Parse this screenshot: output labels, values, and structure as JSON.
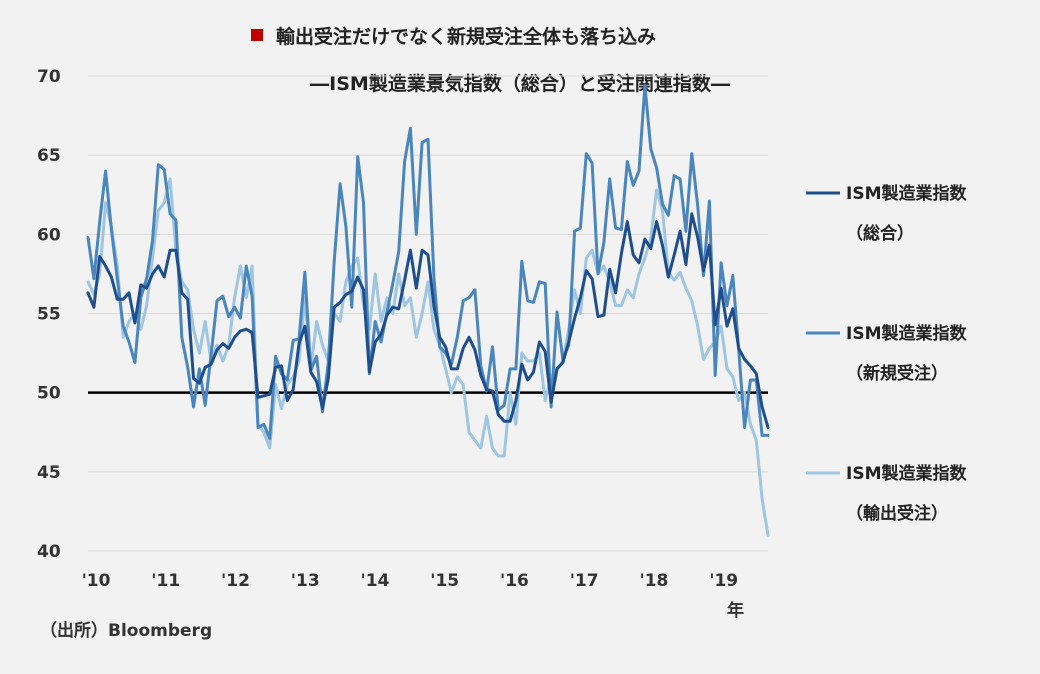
{
  "chart_data": {
    "type": "line",
    "title_marker_color": "#c00000",
    "title": "輸出受注だけでなく新規受注全体も落ち込み",
    "subtitle": "―ISM製造業景気指数（総合）と受注関連指数―",
    "xlabel": "年",
    "ylabel": "",
    "ylim": [
      40,
      70
    ],
    "yticks": [
      40,
      45,
      50,
      55,
      60,
      65,
      70
    ],
    "xlim": [
      2010.0,
      2019.75
    ],
    "xticks": [
      {
        "label": "'10",
        "value": 2010
      },
      {
        "label": "'11",
        "value": 2011
      },
      {
        "label": "'12",
        "value": 2012
      },
      {
        "label": "'13",
        "value": 2013
      },
      {
        "label": "'14",
        "value": 2014
      },
      {
        "label": "'15",
        "value": 2015
      },
      {
        "label": "'16",
        "value": 2016
      },
      {
        "label": "'17",
        "value": 2017
      },
      {
        "label": "'18",
        "value": 2018
      },
      {
        "label": "'19",
        "value": 2019
      }
    ],
    "reference_line": {
      "value": 50,
      "color": "#000000"
    },
    "grid": true,
    "legend_position": "right",
    "series": [
      {
        "name": "ISM製造業指数（総合）",
        "legend_lines": [
          "ISM製造業指数",
          "（総合）"
        ],
        "color": "#1f4e8c",
        "values": [
          56.3,
          55.4,
          58.6,
          58.0,
          57.3,
          55.9,
          55.9,
          56.3,
          54.4,
          56.8,
          56.6,
          57.5,
          58.0,
          57.3,
          59.0,
          59.0,
          56.3,
          55.9,
          50.9,
          50.6,
          51.6,
          51.8,
          52.7,
          53.1,
          52.8,
          53.5,
          53.9,
          54.0,
          53.8,
          49.7,
          49.8,
          49.9,
          51.6,
          51.7,
          49.5,
          50.2,
          53.1,
          54.2,
          51.3,
          50.7,
          49.0,
          50.9,
          55.4,
          55.7,
          56.2,
          56.4,
          57.3,
          56.5,
          51.3,
          53.2,
          53.7,
          54.9,
          55.4,
          55.3,
          57.1,
          59.0,
          56.6,
          59.0,
          58.7,
          55.5,
          53.5,
          52.9,
          51.5,
          51.5,
          52.8,
          53.5,
          52.7,
          51.1,
          50.2,
          50.1,
          48.6,
          48.2,
          48.2,
          49.5,
          51.8,
          50.8,
          51.3,
          53.2,
          52.6,
          49.4,
          51.5,
          51.9,
          53.2,
          54.7,
          56.0,
          57.7,
          57.2,
          54.8,
          54.9,
          57.8,
          56.3,
          58.8,
          60.8,
          58.7,
          58.2,
          59.7,
          59.1,
          60.8,
          59.3,
          57.3,
          58.7,
          60.2,
          58.1,
          61.3,
          59.8,
          57.7,
          59.3,
          54.3,
          56.6,
          54.2,
          55.3,
          52.8,
          52.1,
          51.7,
          51.2,
          49.1,
          47.8
        ]
      },
      {
        "name": "ISM製造業指数（新規受注）",
        "legend_lines": [
          "ISM製造業指数",
          "（新規受注）"
        ],
        "color": "#4a86bd",
        "values": [
          59.8,
          57.2,
          60.8,
          64.0,
          60.3,
          57.2,
          54.2,
          53.2,
          51.9,
          56.0,
          57.2,
          59.6,
          64.4,
          64.1,
          61.3,
          60.9,
          53.5,
          51.6,
          49.1,
          51.5,
          49.2,
          52.4,
          55.8,
          56.1,
          54.8,
          55.4,
          54.7,
          58.0,
          56.1,
          47.8,
          48.0,
          47.1,
          52.3,
          51.2,
          50.8,
          53.3,
          53.4,
          57.6,
          51.4,
          52.3,
          48.8,
          51.9,
          58.3,
          63.2,
          60.5,
          55.4,
          64.9,
          62.0,
          51.2,
          54.5,
          53.2,
          55.1,
          56.9,
          58.9,
          64.6,
          66.7,
          60.0,
          65.8,
          66.0,
          57.3,
          52.9,
          52.5,
          51.8,
          53.5,
          55.8,
          56.0,
          56.5,
          51.7,
          50.1,
          52.9,
          48.9,
          49.2,
          51.5,
          51.5,
          58.3,
          55.8,
          55.7,
          57.0,
          56.9,
          49.1,
          55.1,
          52.1,
          53.0,
          60.2,
          60.4,
          65.1,
          64.5,
          57.5,
          59.5,
          63.5,
          60.4,
          60.3,
          64.6,
          63.1,
          64.0,
          69.4,
          65.4,
          64.2,
          61.9,
          61.2,
          63.7,
          63.5,
          60.2,
          65.1,
          61.8,
          57.4,
          62.1,
          51.1,
          58.2,
          55.5,
          57.4,
          52.7,
          47.8,
          50.8,
          50.8,
          47.3,
          47.3
        ]
      },
      {
        "name": "ISM製造業指数（輸出受注）",
        "legend_lines": [
          "ISM製造業指数",
          "（輸出受注）"
        ],
        "color": "#9ec5e2",
        "values": [
          57.0,
          56.2,
          57.5,
          62.0,
          60.5,
          58.0,
          53.5,
          54.5,
          55.0,
          54.0,
          55.5,
          58.5,
          61.5,
          62.0,
          63.5,
          59.0,
          57.0,
          56.5,
          54.0,
          52.5,
          54.5,
          52.0,
          53.0,
          52.0,
          53.0,
          56.0,
          58.0,
          56.0,
          58.0,
          48.0,
          47.5,
          46.5,
          50.5,
          49.0,
          50.5,
          51.0,
          52.0,
          56.0,
          51.5,
          54.5,
          53.0,
          52.0,
          55.0,
          54.5,
          57.0,
          58.0,
          58.5,
          55.5,
          54.0,
          57.5,
          54.5,
          56.0,
          55.0,
          57.5,
          55.5,
          56.0,
          53.5,
          55.0,
          57.0,
          54.0,
          53.0,
          51.5,
          50.0,
          51.0,
          50.5,
          47.5,
          47.0,
          46.5,
          48.5,
          46.5,
          46.0,
          46.0,
          50.0,
          48.0,
          52.5,
          52.0,
          52.0,
          52.5,
          49.5,
          51.0,
          51.5,
          52.0,
          54.0,
          56.5,
          55.0,
          58.5,
          59.0,
          57.5,
          58.0,
          57.0,
          55.5,
          55.5,
          56.5,
          56.0,
          57.5,
          58.5,
          59.8,
          62.8,
          61.5,
          57.6,
          57.1,
          57.6,
          56.6,
          55.8,
          54.2,
          52.1,
          52.8,
          53.2,
          54.2,
          51.5,
          51.0,
          49.5,
          50.0,
          48.0,
          47.0,
          43.3,
          41.0
        ]
      }
    ],
    "source": "（出所）Bloomberg"
  }
}
